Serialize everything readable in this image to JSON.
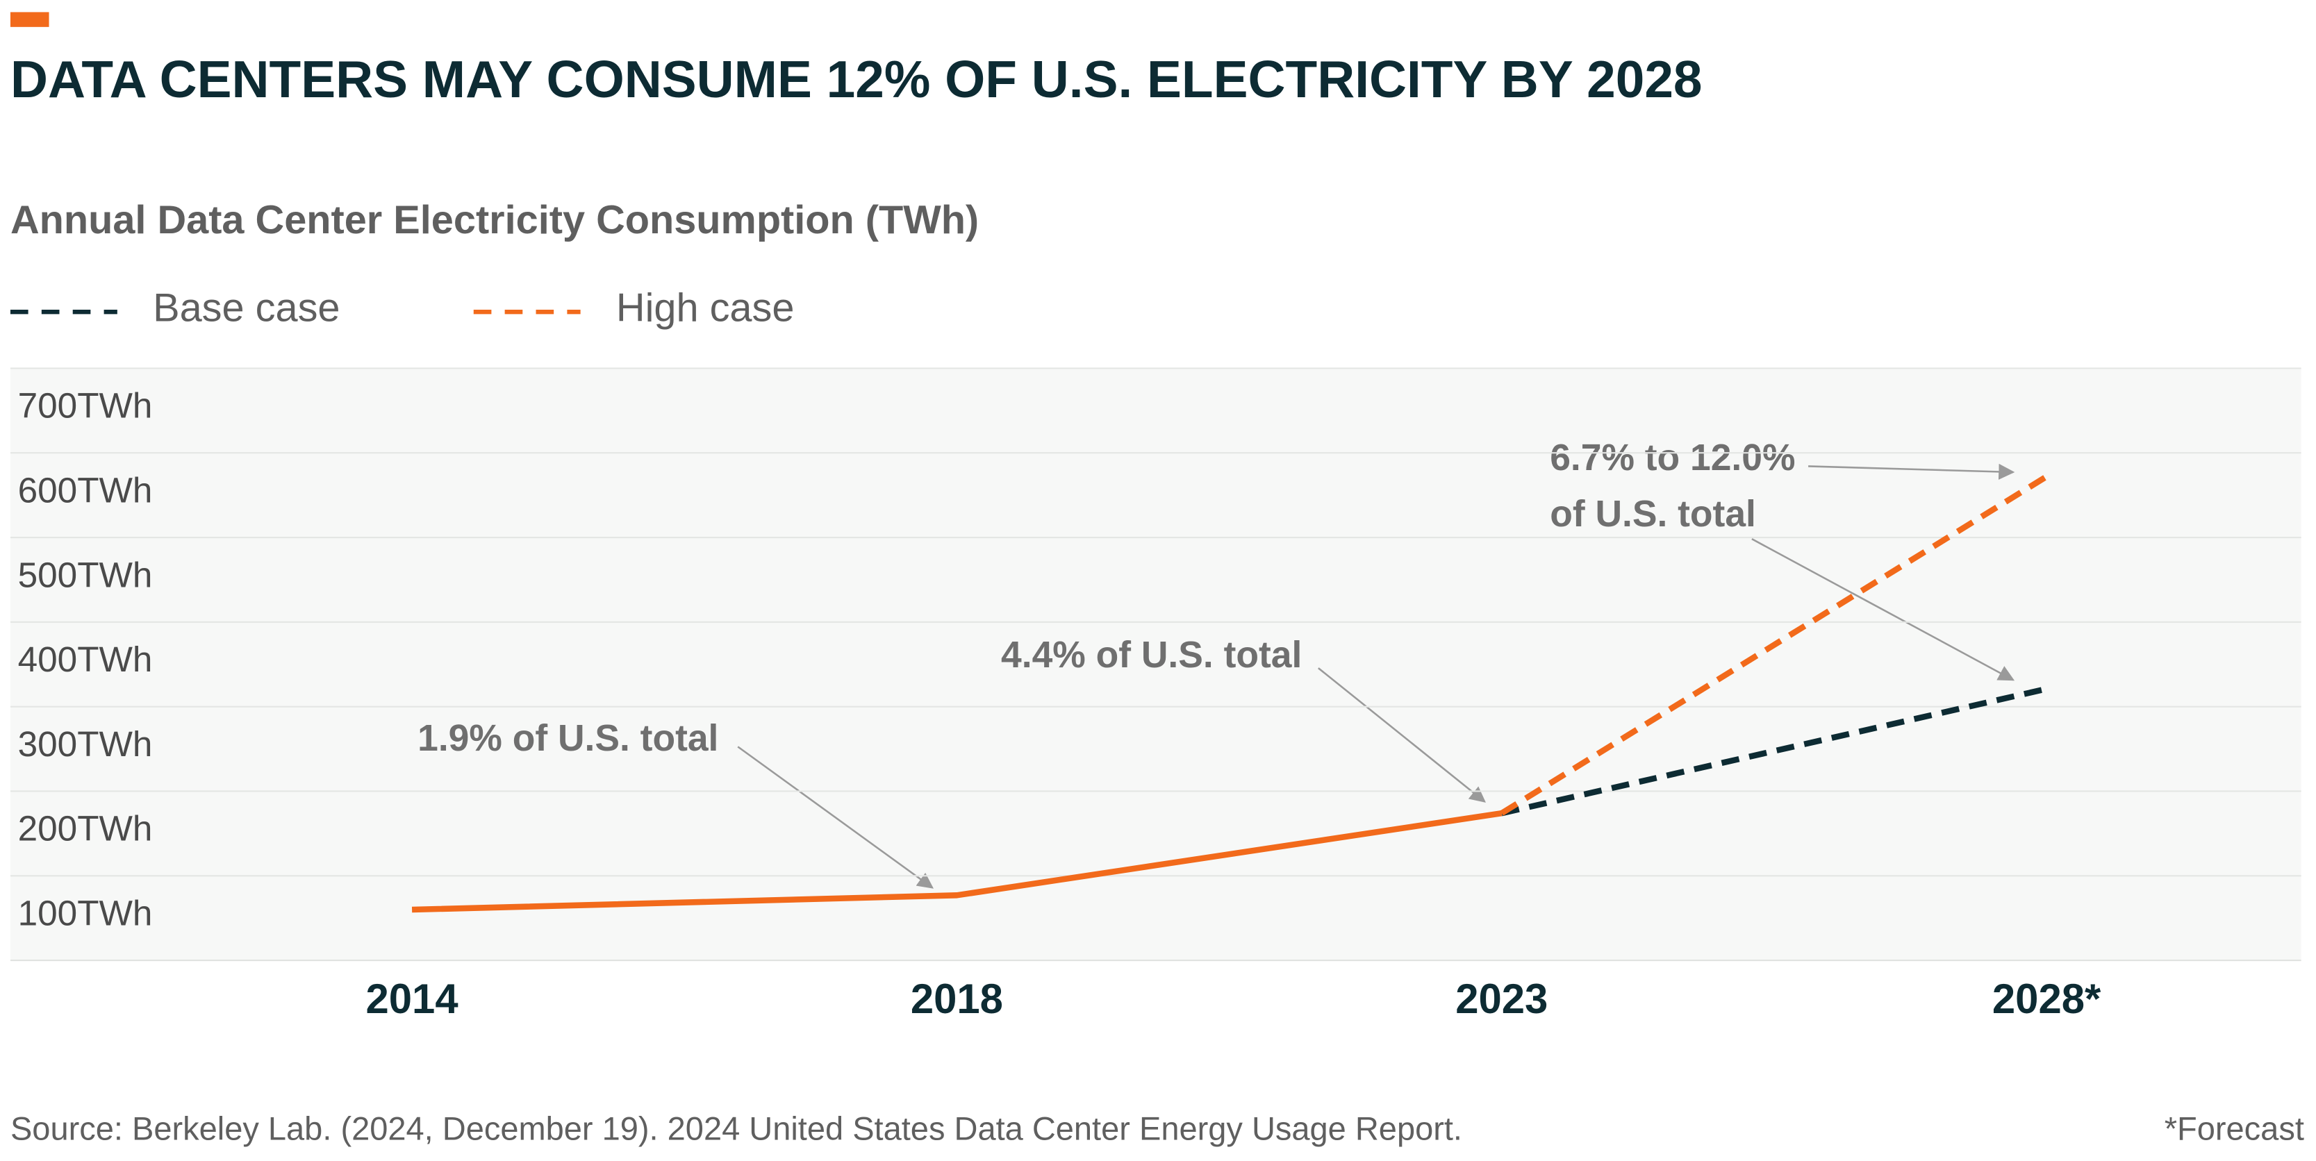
{
  "chart_data": {
    "type": "line",
    "title": "DATA CENTERS MAY CONSUME 12% OF U.S. ELECTRICITY BY 2028",
    "subtitle": "Annual Data Center Electricity Consumption (TWh)",
    "categories": [
      "2014",
      "2018",
      "2023",
      "2028*"
    ],
    "series": [
      {
        "color": "#f26a1b",
        "dashed": false,
        "values": [
          60,
          77,
          174,
          null
        ]
      },
      {
        "name": "Base case",
        "color": "#0d2b33",
        "dashed": true,
        "values": [
          null,
          null,
          174,
          321
        ]
      },
      {
        "name": "High case",
        "color": "#f26a1b",
        "dashed": true,
        "values": [
          null,
          null,
          174,
          572
        ]
      }
    ],
    "ylim": [
      0,
      700
    ],
    "yticks": [
      {
        "value": 100,
        "label": "100TWh"
      },
      {
        "value": 200,
        "label": "200TWh"
      },
      {
        "value": 300,
        "label": "300TWh"
      },
      {
        "value": 400,
        "label": "400TWh"
      },
      {
        "value": 500,
        "label": "500TWh"
      },
      {
        "value": 600,
        "label": "600TWh"
      },
      {
        "value": 700,
        "label": "700TWh"
      }
    ],
    "grid": true,
    "annotations": [
      "1.9% of U.S. total",
      "4.4% of U.S. total",
      "6.7% to 12.0%",
      "of U.S. total"
    ],
    "source": "Source: Berkeley Lab. (2024, December 19). 2024 United States Data Center Energy Usage Report.",
    "footnote": "*Forecast"
  }
}
